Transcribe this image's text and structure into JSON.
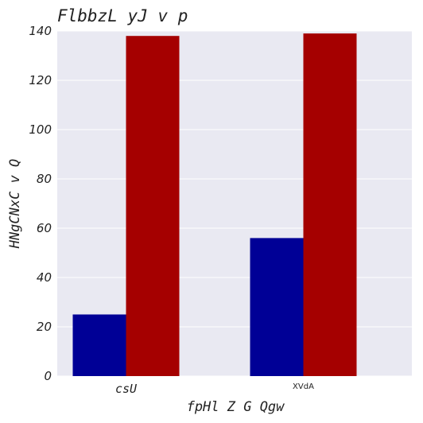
{
  "chart_data": {
    "type": "bar",
    "title": "FlbbzL yJ v p",
    "xlabel": "fpHl Z G  Qgw",
    "ylabel": "HNgCNxC v Q",
    "categories": [
      "csU",
      "XVdA"
    ],
    "series": [
      {
        "values": [
          25,
          56
        ],
        "color": "#000096"
      },
      {
        "values": [
          138,
          139
        ],
        "color": "#a50000"
      }
    ],
    "ylim": [
      0,
      140
    ],
    "yticks": [
      0,
      20,
      40,
      60,
      80,
      100,
      120,
      140
    ],
    "grid": true,
    "background_color": "#e9e9f2",
    "legend": "none"
  }
}
